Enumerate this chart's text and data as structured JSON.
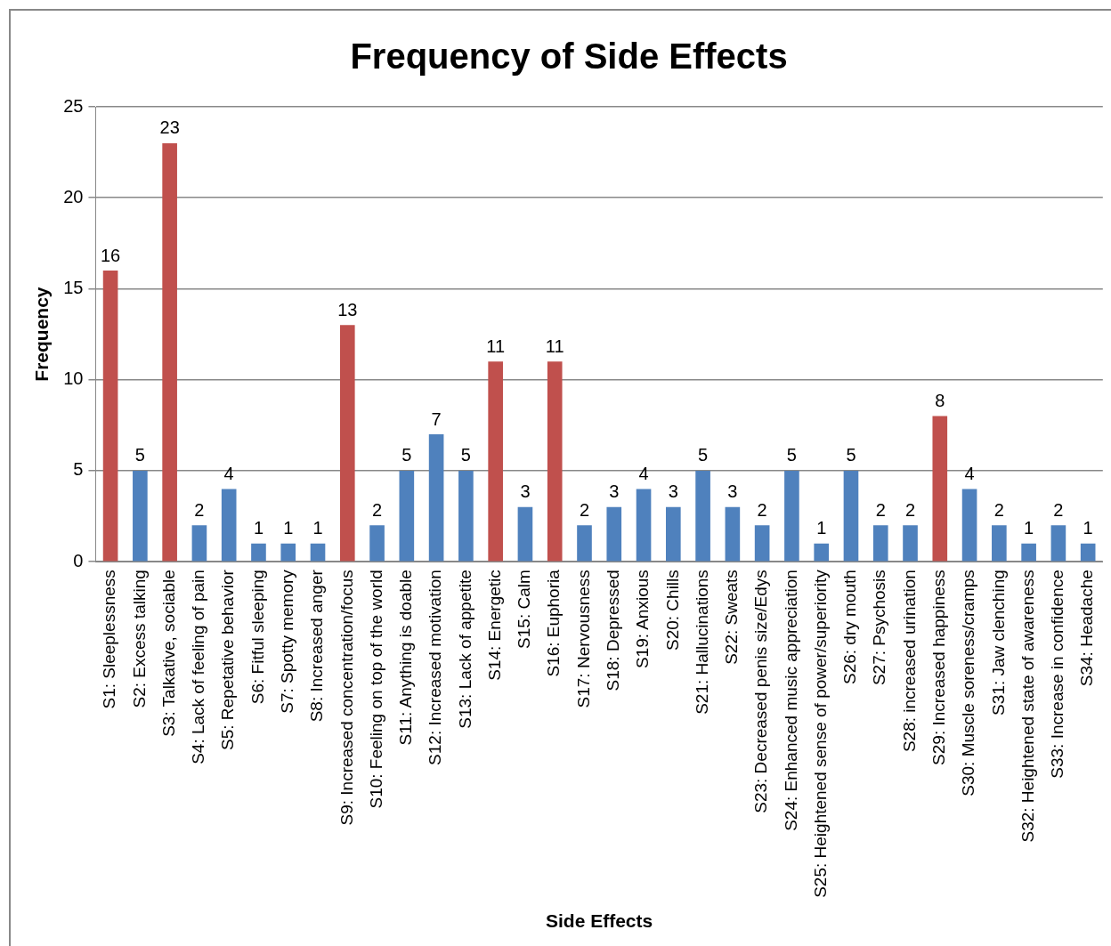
{
  "chart_data": {
    "type": "bar",
    "title": "Frequency of Side Effects",
    "xlabel": "Side Effects",
    "ylabel": "Frequency",
    "categories": [
      "S1: Sleeplessness",
      "S2: Excess talking",
      "S3: Talkative, sociable",
      "S4: Lack of feeling of pain",
      "S5: Repetative behavior",
      "S6: Fitful sleeping",
      "S7: Spotty memory",
      "S8: Increased anger",
      "S9: Increased concentration/focus",
      "S10: Feeling on top of the world",
      "S11: Anything is doable",
      "S12: Increased motivation",
      "S13: Lack of appetite",
      "S14: Energetic",
      "S15: Calm",
      "S16: Euphoria",
      "S17: Nervousness",
      "S18: Depressed",
      "S19: Anxious",
      "S20: Chills",
      "S21: Hallucinations",
      "S22: Sweats",
      "S23: Decreased penis size/Edys",
      "S24: Enhanced music appreciation",
      "S25: Heightened sense of power/superiority",
      "S26: dry mouth",
      "S27: Psychosis",
      "S28: increased urination",
      "S29: Increased happiness",
      "S30: Muscle soreness/cramps",
      "S31: Jaw clenching",
      "S32: Heightened state of awareness",
      "S33: Increase in confidence",
      "S34: Headache"
    ],
    "values": [
      16,
      5,
      23,
      2,
      4,
      1,
      1,
      1,
      13,
      2,
      5,
      7,
      5,
      11,
      3,
      11,
      2,
      3,
      4,
      3,
      5,
      3,
      2,
      5,
      1,
      5,
      2,
      2,
      8,
      4,
      2,
      1,
      2,
      1
    ],
    "colors": [
      "#c0504d",
      "#4f81bd",
      "#c0504d",
      "#4f81bd",
      "#4f81bd",
      "#4f81bd",
      "#4f81bd",
      "#4f81bd",
      "#c0504d",
      "#4f81bd",
      "#4f81bd",
      "#4f81bd",
      "#4f81bd",
      "#c0504d",
      "#4f81bd",
      "#c0504d",
      "#4f81bd",
      "#4f81bd",
      "#4f81bd",
      "#4f81bd",
      "#4f81bd",
      "#4f81bd",
      "#4f81bd",
      "#4f81bd",
      "#4f81bd",
      "#4f81bd",
      "#4f81bd",
      "#4f81bd",
      "#c0504d",
      "#4f81bd",
      "#4f81bd",
      "#4f81bd",
      "#4f81bd",
      "#4f81bd"
    ],
    "ylim": [
      0,
      25
    ],
    "yticks": [
      0,
      5,
      10,
      15,
      20,
      25
    ],
    "grid": "y",
    "legend": false,
    "data_labels": true
  }
}
